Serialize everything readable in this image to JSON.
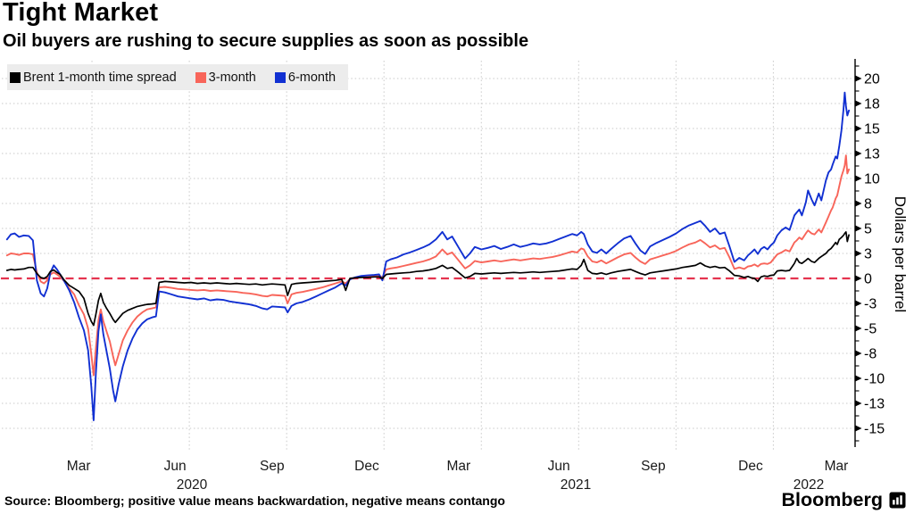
{
  "header": {
    "title": "Tight Market",
    "subtitle": "Oil buyers are rushing to secure supplies as soon as possible"
  },
  "legend": {
    "items": [
      {
        "label": "Brent 1-month time spread",
        "color": "#000000"
      },
      {
        "label": "3-month",
        "color": "#f8655a"
      },
      {
        "label": "6-month",
        "color": "#1130d2"
      }
    ]
  },
  "chart_data": {
    "type": "line",
    "title": "Tight Market",
    "subtitle": "Oil buyers are rushing to secure supplies as soon as possible",
    "ylabel": "Dollars per barrel",
    "x_unit": "months since Jan 2020",
    "xlim": [
      0.38,
      26.33
    ],
    "ylim": [
      -16.8,
      21.8
    ],
    "grid": true,
    "legend_position": "top-left",
    "zero_line_color": "#e5344f",
    "grid_color": "#c9c9c9",
    "y_ticks": [
      {
        "label": "20",
        "v": 20
      },
      {
        "label": "18",
        "v": 17.5
      },
      {
        "label": "15",
        "v": 15
      },
      {
        "label": "13",
        "v": 12.5
      },
      {
        "label": "10",
        "v": 10
      },
      {
        "label": "8",
        "v": 7.5
      },
      {
        "label": "5",
        "v": 5
      },
      {
        "label": "3",
        "v": 2.5
      },
      {
        "label": "0",
        "v": 0
      },
      {
        "label": "-3",
        "v": -2.5
      },
      {
        "label": "-5",
        "v": -5
      },
      {
        "label": "-8",
        "v": -7.5
      },
      {
        "label": "-10",
        "v": -10
      },
      {
        "label": "-13",
        "v": -12.5
      },
      {
        "label": "-15",
        "v": -15
      }
    ],
    "y_minor_step": 1.25,
    "x_gridlines_months": [
      3,
      6,
      9,
      12,
      15,
      18,
      21,
      24
    ],
    "x_tick_labels": [
      {
        "label": "Mar",
        "m": 2.59
      },
      {
        "label": "Jun",
        "m": 5.56
      },
      {
        "label": "Sep",
        "m": 8.55
      },
      {
        "label": "Dec",
        "m": 11.47
      },
      {
        "label": "Mar",
        "m": 14.3
      },
      {
        "label": "Jun",
        "m": 17.39
      },
      {
        "label": "Sep",
        "m": 20.3
      },
      {
        "label": "Dec",
        "m": 23.3
      },
      {
        "label": "Mar",
        "m": 25.94
      }
    ],
    "x_year_labels": [
      {
        "label": "2020",
        "m": 6.08
      },
      {
        "label": "2021",
        "m": 17.91
      },
      {
        "label": "2022",
        "m": 25.09
      }
    ],
    "x": [
      0.38,
      0.5,
      0.62,
      0.75,
      0.9,
      1.05,
      1.18,
      1.3,
      1.42,
      1.52,
      1.62,
      1.72,
      1.82,
      1.92,
      2.02,
      2.15,
      2.3,
      2.45,
      2.6,
      2.75,
      2.88,
      2.98,
      3.05,
      3.12,
      3.2,
      3.27,
      3.35,
      3.45,
      3.55,
      3.65,
      3.72,
      3.82,
      3.95,
      4.1,
      4.25,
      4.4,
      4.55,
      4.7,
      4.85,
      4.97,
      5.07,
      5.25,
      5.45,
      5.65,
      5.85,
      6.05,
      6.25,
      6.45,
      6.65,
      6.85,
      7.05,
      7.25,
      7.45,
      7.65,
      7.85,
      8.05,
      8.25,
      8.4,
      8.55,
      8.75,
      8.95,
      9.03,
      9.15,
      9.3,
      9.5,
      9.7,
      9.9,
      10.1,
      10.3,
      10.5,
      10.7,
      10.82,
      10.95,
      11.1,
      11.3,
      11.5,
      11.7,
      11.85,
      11.95,
      12.07,
      12.2,
      12.4,
      12.6,
      12.8,
      13.0,
      13.2,
      13.4,
      13.6,
      13.8,
      13.95,
      14.1,
      14.3,
      14.5,
      14.65,
      14.8,
      15.0,
      15.2,
      15.4,
      15.6,
      15.8,
      16.0,
      16.2,
      16.4,
      16.6,
      16.8,
      17.0,
      17.2,
      17.4,
      17.6,
      17.8,
      17.95,
      18.08,
      18.16,
      18.28,
      18.42,
      18.56,
      18.7,
      18.85,
      19.0,
      19.2,
      19.4,
      19.6,
      19.75,
      19.9,
      20.05,
      20.2,
      20.4,
      20.6,
      20.8,
      21.0,
      21.2,
      21.4,
      21.6,
      21.75,
      21.9,
      22.05,
      22.2,
      22.35,
      22.5,
      22.65,
      22.8,
      22.95,
      23.1,
      23.22,
      23.32,
      23.42,
      23.52,
      23.62,
      23.72,
      23.82,
      23.92,
      24.02,
      24.12,
      24.25,
      24.38,
      24.5,
      24.65,
      24.72,
      24.8,
      24.88,
      25.0,
      25.07,
      25.18,
      25.27,
      25.4,
      25.48,
      25.62,
      25.7,
      25.78,
      25.83,
      25.92,
      25.97,
      26.03,
      26.1,
      26.16,
      26.2,
      26.24,
      26.28,
      26.33
    ],
    "series": [
      {
        "name": "Brent 1-month time spread",
        "color": "#000000",
        "width": 1.7,
        "values": [
          0.8,
          0.9,
          0.85,
          0.9,
          0.95,
          1.1,
          1.1,
          0.5,
          0.1,
          0.0,
          0.2,
          0.7,
          0.85,
          0.6,
          0.4,
          -0.2,
          -0.7,
          -1.0,
          -1.3,
          -2.0,
          -3.5,
          -4.3,
          -4.7,
          -3.6,
          -2.2,
          -1.5,
          -2.4,
          -3.0,
          -3.5,
          -4.1,
          -4.4,
          -4.0,
          -3.5,
          -3.2,
          -3.0,
          -2.8,
          -2.7,
          -2.6,
          -2.55,
          -2.5,
          -0.4,
          -0.3,
          -0.35,
          -0.4,
          -0.45,
          -0.4,
          -0.5,
          -0.45,
          -0.5,
          -0.45,
          -0.5,
          -0.55,
          -0.5,
          -0.55,
          -0.6,
          -0.55,
          -0.65,
          -0.6,
          -0.55,
          -0.6,
          -0.65,
          -1.7,
          -0.6,
          -0.5,
          -0.45,
          -0.4,
          -0.35,
          -0.3,
          -0.25,
          -0.2,
          -0.1,
          -1.2,
          0.0,
          0.05,
          0.1,
          0.1,
          0.15,
          0.15,
          0.0,
          0.4,
          0.45,
          0.5,
          0.55,
          0.6,
          0.7,
          0.75,
          0.85,
          1.0,
          1.3,
          1.0,
          1.1,
          0.6,
          0.05,
          0.2,
          0.5,
          0.45,
          0.5,
          0.55,
          0.5,
          0.55,
          0.6,
          0.55,
          0.6,
          0.65,
          0.6,
          0.65,
          0.7,
          0.75,
          0.85,
          0.95,
          0.9,
          1.3,
          1.9,
          0.8,
          0.5,
          0.45,
          0.55,
          0.4,
          0.55,
          0.7,
          0.8,
          0.9,
          0.7,
          0.5,
          0.35,
          0.55,
          0.65,
          0.75,
          0.85,
          0.95,
          1.1,
          1.2,
          1.3,
          1.55,
          1.25,
          1.1,
          1.2,
          1.05,
          1.1,
          0.75,
          0.3,
          0.25,
          0.1,
          0.2,
          0.05,
          0.0,
          -0.3,
          0.15,
          0.25,
          0.2,
          0.3,
          0.35,
          0.75,
          0.8,
          0.75,
          0.8,
          1.5,
          2.0,
          1.6,
          1.5,
          1.8,
          2.0,
          1.7,
          1.6,
          2.0,
          2.2,
          2.5,
          2.8,
          3.0,
          3.2,
          3.6,
          3.4,
          3.9,
          4.1,
          4.3,
          4.5,
          4.65,
          3.7,
          4.35
        ]
      },
      {
        "name": "3-month",
        "color": "#f8655a",
        "width": 1.9,
        "values": [
          2.3,
          2.5,
          2.45,
          2.35,
          2.5,
          2.5,
          2.4,
          0.6,
          -0.3,
          -0.5,
          -0.2,
          0.4,
          0.6,
          0.4,
          0.15,
          -0.3,
          -1.0,
          -1.6,
          -2.7,
          -3.6,
          -5.0,
          -7.6,
          -9.7,
          -7.0,
          -4.2,
          -3.1,
          -4.3,
          -5.3,
          -6.3,
          -7.8,
          -8.7,
          -7.6,
          -6.2,
          -5.2,
          -4.4,
          -3.8,
          -3.4,
          -3.1,
          -3.0,
          -2.9,
          -0.9,
          -0.85,
          -0.95,
          -1.05,
          -1.1,
          -1.15,
          -1.2,
          -1.15,
          -1.25,
          -1.2,
          -1.25,
          -1.3,
          -1.35,
          -1.45,
          -1.5,
          -1.6,
          -1.75,
          -1.8,
          -1.65,
          -1.7,
          -1.75,
          -2.5,
          -1.6,
          -1.45,
          -1.35,
          -1.2,
          -1.05,
          -0.9,
          -0.7,
          -0.5,
          -0.3,
          -0.5,
          -0.05,
          0.05,
          0.15,
          0.2,
          0.25,
          0.3,
          0.1,
          0.9,
          1.0,
          1.1,
          1.25,
          1.4,
          1.55,
          1.7,
          1.9,
          2.2,
          2.9,
          2.4,
          2.6,
          1.8,
          1.0,
          1.3,
          1.75,
          1.6,
          1.7,
          1.8,
          1.7,
          1.8,
          1.9,
          1.8,
          1.9,
          2.0,
          1.95,
          2.05,
          2.15,
          2.3,
          2.5,
          2.7,
          2.6,
          3.0,
          2.9,
          2.2,
          1.7,
          1.6,
          1.8,
          1.5,
          1.75,
          2.1,
          2.4,
          2.55,
          2.1,
          1.7,
          1.45,
          1.9,
          2.1,
          2.3,
          2.5,
          2.75,
          3.1,
          3.4,
          3.6,
          3.85,
          3.5,
          3.1,
          3.3,
          2.95,
          3.05,
          2.1,
          0.95,
          1.1,
          0.95,
          1.2,
          1.25,
          1.4,
          1.2,
          1.45,
          1.5,
          1.45,
          1.6,
          2.0,
          2.4,
          2.6,
          2.85,
          2.7,
          3.6,
          3.8,
          4.1,
          3.9,
          4.5,
          4.8,
          4.5,
          4.4,
          4.9,
          4.6,
          5.6,
          6.2,
          6.8,
          7.1,
          8.0,
          8.3,
          9.2,
          10.2,
          10.8,
          11.3,
          12.3,
          10.5,
          10.9
        ]
      },
      {
        "name": "6-month",
        "color": "#1130d2",
        "width": 1.9,
        "values": [
          3.9,
          4.4,
          4.5,
          4.15,
          4.3,
          4.25,
          3.8,
          -0.2,
          -1.5,
          -1.8,
          -1.0,
          0.6,
          1.3,
          0.9,
          0.4,
          -0.3,
          -1.2,
          -2.4,
          -3.9,
          -5.2,
          -7.2,
          -10.8,
          -14.2,
          -9.5,
          -5.3,
          -3.6,
          -5.6,
          -7.3,
          -9.0,
          -11.2,
          -12.3,
          -10.6,
          -8.8,
          -7.2,
          -6.0,
          -5.1,
          -4.5,
          -4.1,
          -3.9,
          -3.8,
          -1.3,
          -1.4,
          -1.6,
          -1.8,
          -1.9,
          -2.0,
          -2.1,
          -2.0,
          -2.2,
          -2.1,
          -2.15,
          -2.3,
          -2.4,
          -2.5,
          -2.6,
          -2.75,
          -3.0,
          -3.1,
          -2.8,
          -2.85,
          -2.9,
          -3.4,
          -2.75,
          -2.5,
          -2.35,
          -2.1,
          -1.8,
          -1.5,
          -1.2,
          -0.9,
          -0.5,
          -0.7,
          -0.1,
          0.1,
          0.25,
          0.3,
          0.35,
          0.4,
          -0.2,
          1.7,
          1.9,
          2.1,
          2.4,
          2.6,
          2.85,
          3.1,
          3.4,
          3.9,
          4.65,
          3.9,
          4.2,
          3.1,
          2.0,
          2.5,
          3.15,
          2.9,
          3.05,
          3.25,
          2.95,
          3.15,
          3.4,
          3.15,
          3.3,
          3.5,
          3.4,
          3.5,
          3.7,
          3.95,
          4.2,
          4.45,
          4.3,
          4.65,
          4.45,
          3.4,
          2.7,
          2.55,
          2.9,
          2.5,
          2.95,
          3.5,
          4.0,
          4.25,
          3.5,
          2.8,
          2.45,
          3.2,
          3.55,
          3.85,
          4.15,
          4.5,
          4.95,
          5.3,
          5.55,
          5.75,
          5.25,
          4.65,
          5.0,
          4.45,
          4.6,
          3.2,
          1.65,
          2.05,
          1.8,
          2.3,
          2.6,
          2.9,
          2.45,
          2.95,
          3.15,
          2.9,
          3.3,
          3.6,
          4.3,
          4.8,
          5.1,
          4.85,
          6.3,
          6.6,
          6.9,
          6.3,
          7.6,
          8.8,
          7.9,
          7.3,
          8.5,
          7.8,
          9.8,
          10.6,
          10.9,
          11.4,
          12.2,
          12.0,
          13.2,
          14.8,
          16.8,
          18.6,
          17.2,
          16.3,
          16.8
        ]
      }
    ]
  },
  "footer": {
    "source": "Source: Bloomberg; positive value means backwardation, negative means contango",
    "brand": "Bloomberg"
  }
}
